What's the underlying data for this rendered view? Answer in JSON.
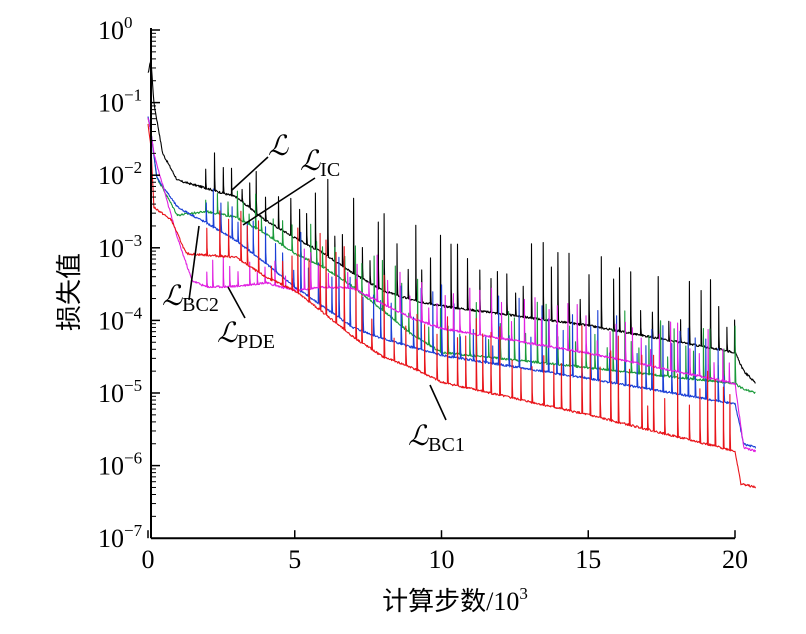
{
  "chart_data": {
    "type": "line",
    "title": "",
    "xlabel": "计算步数/10",
    "xlabel_exp": "3",
    "ylabel": "损失值",
    "xlim": [
      0,
      21
    ],
    "ylim_log10": [
      -7,
      0
    ],
    "yscale": "log",
    "grid": false,
    "x_ticks": [
      {
        "v": 0,
        "label": "0"
      },
      {
        "v": 5,
        "label": "5"
      },
      {
        "v": 10,
        "label": "10"
      },
      {
        "v": 15,
        "label": "15"
      },
      {
        "v": 20,
        "label": "20"
      }
    ],
    "y_ticks": [
      {
        "v": 0,
        "base": "10",
        "exp": "0"
      },
      {
        "v": -1,
        "base": "10",
        "exp": "−1"
      },
      {
        "v": -2,
        "base": "10",
        "exp": "−2"
      },
      {
        "v": -3,
        "base": "10",
        "exp": "−3"
      },
      {
        "v": -4,
        "base": "10",
        "exp": "−4"
      },
      {
        "v": -5,
        "base": "10",
        "exp": "−5"
      },
      {
        "v": -6,
        "base": "10",
        "exp": "−6"
      },
      {
        "v": -7,
        "base": "10",
        "exp": "−7"
      }
    ],
    "series": [
      {
        "name": "L",
        "symbol": "ℒ",
        "sub": "",
        "color": "#000000",
        "spike": 0.9,
        "x": [
          0,
          0.1,
          0.2,
          0.5,
          1,
          2,
          3,
          4,
          5,
          6,
          7,
          8,
          9,
          10,
          15,
          20,
          20.3,
          20.7
        ],
        "log10_y": [
          -0.6,
          -0.4,
          -1.0,
          -1.7,
          -2.07,
          -2.18,
          -2.3,
          -2.62,
          -2.86,
          -3.08,
          -3.35,
          -3.59,
          -3.72,
          -3.8,
          -4.07,
          -4.44,
          -4.7,
          -4.86
        ]
      },
      {
        "name": "L_IC",
        "symbol": "ℒ",
        "sub": "IC",
        "color": "#1a9a3a",
        "spike": 0.7,
        "x": [
          0,
          0.1,
          0.3,
          1,
          2,
          3,
          4,
          5,
          6,
          7,
          8,
          9,
          10,
          15,
          20,
          20.3,
          20.7
        ],
        "log10_y": [
          -1.2,
          -1.4,
          -2.03,
          -2.55,
          -2.5,
          -2.58,
          -2.8,
          -3.08,
          -3.27,
          -3.54,
          -3.86,
          -4.2,
          -4.44,
          -4.65,
          -4.87,
          -4.95,
          -5.0
        ]
      },
      {
        "name": "L_BC2",
        "symbol": "ℒ",
        "sub": "BC2",
        "color": "#1a3fd6",
        "spike": 0.8,
        "x": [
          0,
          0.1,
          0.3,
          1,
          2,
          3,
          4,
          5,
          6,
          7,
          8,
          9,
          10,
          15,
          20,
          20.3,
          20.7
        ],
        "log10_y": [
          -1.2,
          -1.4,
          -2.03,
          -2.44,
          -2.66,
          -2.9,
          -3.21,
          -3.54,
          -3.82,
          -4.1,
          -4.25,
          -4.37,
          -4.48,
          -4.8,
          -5.15,
          -5.7,
          -5.75
        ]
      },
      {
        "name": "L_PDE",
        "symbol": "ℒ",
        "sub": "PDE",
        "color": "#e020e0",
        "spike": 0.6,
        "x": [
          0,
          0.1,
          0.2,
          1,
          1.5,
          2,
          3,
          4,
          5,
          6,
          7,
          8,
          9,
          10,
          15,
          20,
          20.3,
          20.7
        ],
        "log10_y": [
          -1.2,
          -1.4,
          -1.7,
          -2.86,
          -3.45,
          -3.54,
          -3.53,
          -3.48,
          -3.59,
          -3.54,
          -3.56,
          -3.77,
          -3.97,
          -4.11,
          -4.45,
          -4.87,
          -5.75,
          -5.8
        ]
      },
      {
        "name": "L_BC1",
        "symbol": "ℒ",
        "sub": "BC1",
        "color": "#e8141a",
        "spike": 1.0,
        "x": [
          0,
          0.1,
          0.2,
          0.8,
          1.3,
          2,
          3,
          4,
          5,
          6,
          7,
          8,
          9,
          10,
          15,
          20,
          20.2,
          20.7
        ],
        "log10_y": [
          -1.3,
          -1.6,
          -2.44,
          -2.62,
          -3.08,
          -3.1,
          -3.13,
          -3.4,
          -3.59,
          -3.9,
          -4.23,
          -4.5,
          -4.65,
          -4.85,
          -5.3,
          -5.8,
          -6.25,
          -6.3
        ]
      }
    ]
  }
}
